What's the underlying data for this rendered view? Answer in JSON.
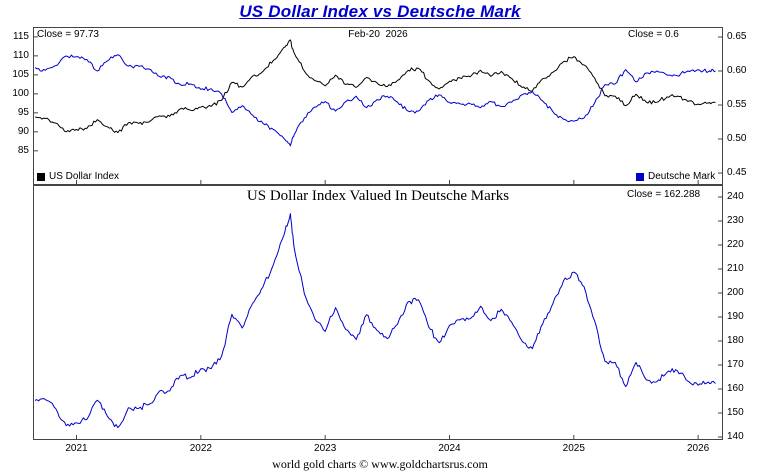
{
  "title": "US Dollar Index vs Deutsche Mark",
  "footer": "world gold charts © www.goldchartsrus.com",
  "colors": {
    "title_blue": "#0000cc",
    "us_dollar_index_line": "#000000",
    "deutsche_mark_line": "#0000cc",
    "panel_border": "#444444",
    "background": "#ffffff"
  },
  "top_panel": {
    "close_left": "Close = 97.73",
    "date_label": "Feb-20  2026",
    "close_right": "Close = 0.6",
    "legend": [
      {
        "label": "US Dollar Index",
        "color": "#000000"
      },
      {
        "label": "Deutsche Mark",
        "color": "#0000cc"
      }
    ]
  },
  "bottom_panel": {
    "title": "US Dollar Index Valued In Deutsche Marks",
    "close_label": "Close = 162.288"
  },
  "chart_data": {
    "type": "line",
    "title": "US Dollar Index vs Deutsche Mark",
    "subtitle_bottom": "US Dollar Index Valued In Deutsche Marks",
    "as_of_date": "Feb-20 2026",
    "grid": false,
    "x_range": [
      2020.65,
      2026.2
    ],
    "x_label_years": [
      "2021",
      "2022",
      "2023",
      "2024",
      "2025",
      "2026"
    ],
    "x": [
      2020.667,
      2020.75,
      2020.833,
      2020.917,
      2021.0,
      2021.083,
      2021.167,
      2021.25,
      2021.333,
      2021.417,
      2021.5,
      2021.583,
      2021.667,
      2021.75,
      2021.833,
      2021.917,
      2022.0,
      2022.083,
      2022.167,
      2022.25,
      2022.333,
      2022.417,
      2022.5,
      2022.583,
      2022.667,
      2022.72,
      2022.75,
      2022.833,
      2022.917,
      2023.0,
      2023.083,
      2023.167,
      2023.25,
      2023.333,
      2023.417,
      2023.5,
      2023.583,
      2023.667,
      2023.75,
      2023.833,
      2023.917,
      2024.0,
      2024.083,
      2024.167,
      2024.25,
      2024.333,
      2024.417,
      2024.5,
      2024.583,
      2024.667,
      2024.75,
      2024.833,
      2024.917,
      2025.0,
      2025.083,
      2025.167,
      2025.25,
      2025.333,
      2025.417,
      2025.5,
      2025.583,
      2025.667,
      2025.75,
      2025.833,
      2025.917,
      2026.0,
      2026.083,
      2026.14
    ],
    "panels": [
      {
        "name": "top",
        "legend_position": "bottom",
        "axes": {
          "left": {
            "range": [
              76.0,
              117.6
            ],
            "ticks": [
              "115",
              "110",
              "105",
              "100",
              "95",
              "90",
              "85"
            ]
          },
          "right": {
            "range": [
              0.4324,
              0.6647
            ],
            "ticks": [
              "0.65",
              "0.60",
              "0.55",
              "0.50",
              "0.45"
            ]
          }
        },
        "series": [
          {
            "name": "US Dollar Index",
            "axis": "left",
            "color": "#000000",
            "close": 97.73,
            "values": [
              93.9,
              93.5,
              92.3,
              90.0,
              90.6,
              90.9,
              93.2,
              91.3,
              89.8,
              92.4,
              92.2,
              92.6,
              94.2,
              94.1,
              96.0,
              95.7,
              96.5,
              96.7,
              98.3,
              103.0,
              101.8,
              104.7,
              105.9,
              108.8,
              112.2,
              114.2,
              110.8,
              106.0,
              103.5,
              102.1,
              104.9,
              102.5,
              101.7,
              104.3,
              102.9,
              101.9,
              103.6,
              106.2,
              106.7,
              103.5,
              101.3,
              103.3,
              104.2,
              104.5,
              106.2,
              104.6,
              105.9,
              104.1,
              101.7,
              100.8,
              104.0,
              105.7,
              108.5,
              109.8,
              107.6,
              104.2,
              99.5,
              99.4,
              96.9,
              99.9,
              97.8,
              97.8,
              99.2,
              99.4,
              98.0,
              97.3,
              97.6,
              97.73
            ]
          },
          {
            "name": "Deutsche Mark",
            "axis": "right",
            "color": "#0000cc",
            "close": 0.6,
            "values": [
              0.605,
              0.601,
              0.608,
              0.622,
              0.621,
              0.617,
              0.6,
              0.615,
              0.624,
              0.607,
              0.607,
              0.603,
              0.592,
              0.591,
              0.58,
              0.581,
              0.573,
              0.574,
              0.566,
              0.539,
              0.549,
              0.535,
              0.523,
              0.514,
              0.501,
              0.49,
              0.506,
              0.531,
              0.547,
              0.555,
              0.541,
              0.555,
              0.563,
              0.546,
              0.558,
              0.563,
              0.554,
              0.541,
              0.541,
              0.557,
              0.565,
              0.554,
              0.552,
              0.552,
              0.546,
              0.555,
              0.548,
              0.554,
              0.565,
              0.57,
              0.556,
              0.54,
              0.529,
              0.526,
              0.531,
              0.553,
              0.58,
              0.581,
              0.602,
              0.584,
              0.597,
              0.6,
              0.594,
              0.593,
              0.6,
              0.602,
              0.599,
              0.6
            ]
          }
        ]
      },
      {
        "name": "bottom",
        "title": "US Dollar Index Valued In Deutsche Marks",
        "axes": {
          "right": {
            "range": [
              138.75,
              245.0
            ],
            "ticks": [
              "240",
              "230",
              "220",
              "210",
              "200",
              "190",
              "180",
              "170",
              "160",
              "150",
              "140"
            ]
          }
        },
        "series": [
          {
            "name": "US Dollar Index Valued In Deutsche Marks",
            "axis": "right",
            "color": "#0000cc",
            "close": 162.288,
            "values": [
              155.2,
              155.6,
              151.8,
              144.7,
              145.9,
              147.3,
              155.3,
              148.5,
              143.9,
              152.2,
              151.9,
              153.6,
              159.1,
              159.2,
              165.5,
              164.7,
              168.4,
              168.5,
              173.7,
              191.1,
              185.4,
              195.7,
              202.5,
              211.7,
              224.0,
              233.1,
              219.0,
              199.6,
              189.2,
              184.0,
              193.9,
              184.7,
              180.6,
              191.0,
              184.4,
              181.0,
              187.0,
              196.3,
              197.2,
              185.8,
              179.3,
              186.5,
              188.8,
              189.3,
              194.5,
              188.5,
              193.2,
              187.9,
              180.0,
              176.8,
              187.1,
              195.7,
              205.1,
              208.7,
              202.6,
              188.4,
              171.6,
              171.1,
              161.0,
              171.1,
              163.8,
              163.0,
              167.0,
              167.6,
              163.3,
              161.6,
              162.9,
              162.288
            ]
          }
        ]
      }
    ]
  }
}
